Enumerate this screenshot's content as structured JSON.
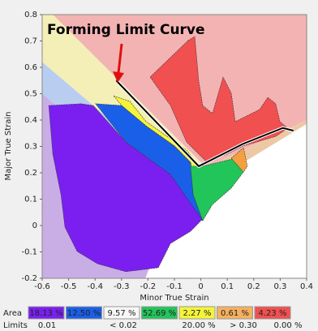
{
  "chart_data": {
    "type": "fld",
    "annotation": "Forming Limit Curve",
    "x_label": "Minor True Strain",
    "y_label": "Major True Strain",
    "xlim": [
      -0.6,
      0.4
    ],
    "ylim": [
      -0.2,
      0.8
    ],
    "xticks": [
      -0.6,
      -0.5,
      -0.4,
      -0.3,
      -0.2,
      -0.1,
      0,
      0.1,
      0.2,
      0.3,
      0.4
    ],
    "yticks": [
      -0.2,
      -0.1,
      0,
      0.1,
      0.2,
      0.3,
      0.4,
      0.5,
      0.6,
      0.7,
      0.8
    ],
    "zones": [
      {
        "color": "#f4b3b3",
        "x": [
          -0.56,
          0.4,
          0.4,
          0.02
        ],
        "y": [
          0.8,
          0.8,
          0.4,
          0.22
        ]
      },
      {
        "color": "#f3efb6",
        "x": [
          -0.6,
          -0.56,
          0.02,
          -0.05,
          -0.6
        ],
        "y": [
          0.8,
          0.8,
          0.22,
          0.15,
          0.62
        ]
      },
      {
        "color": "#b9cdf0",
        "x": [
          -0.6,
          -0.05,
          -0.1,
          -0.6
        ],
        "y": [
          0.62,
          0.15,
          0.08,
          0.5
        ]
      },
      {
        "color": "#c9aee6",
        "x": [
          -0.6,
          -0.1,
          -0.21,
          -0.6
        ],
        "y": [
          0.5,
          0.08,
          -0.2,
          -0.2
        ]
      },
      {
        "color": "#ecc9a4",
        "x": [
          0.02,
          0.4,
          0.4,
          -0.1,
          -0.05
        ],
        "y": [
          0.22,
          0.4,
          0.385,
          0.08,
          0.15
        ]
      }
    ],
    "regions": [
      {
        "color": "#7a1ff0",
        "x": [
          -0.575,
          -0.453,
          -0.407,
          -0.284,
          -0.115,
          0.007,
          -0.039,
          -0.115,
          -0.161,
          -0.284,
          -0.391,
          -0.468,
          -0.514,
          -0.529,
          -0.56
        ],
        "y": [
          0.455,
          0.462,
          0.455,
          0.317,
          0.194,
          0.025,
          -0.022,
          -0.068,
          -0.16,
          -0.175,
          -0.145,
          -0.098,
          -0.006,
          0.117,
          0.271
        ]
      },
      {
        "color": "#1a5fe8",
        "x": [
          -0.398,
          -0.299,
          -0.207,
          -0.1,
          -0.039,
          -0.029,
          0.007,
          -0.115,
          -0.284
        ],
        "y": [
          0.462,
          0.455,
          0.378,
          0.302,
          0.24,
          0.117,
          0.018,
          0.194,
          0.317
        ]
      },
      {
        "color": "#f4f43a",
        "x": [
          -0.33,
          -0.269,
          -0.207,
          -0.054,
          -0.008,
          -0.029,
          -0.039,
          -0.1,
          -0.207,
          -0.299
        ],
        "y": [
          0.492,
          0.471,
          0.394,
          0.286,
          0.225,
          0.203,
          0.24,
          0.302,
          0.378,
          0.455
        ]
      },
      {
        "color": "#22c55a",
        "x": [
          -0.039,
          0.007,
          0.13,
          0.161,
          0.115,
          0.044,
          0.007,
          -0.029
        ],
        "y": [
          0.225,
          0.225,
          0.255,
          0.203,
          0.142,
          0.08,
          0.018,
          0.117
        ]
      },
      {
        "color": "#f5a040",
        "x": [
          0.115,
          0.161,
          0.176,
          0.161
        ],
        "y": [
          0.255,
          0.295,
          0.225,
          0.203
        ]
      },
      {
        "color": "#f05050",
        "x": [
          -0.048,
          -0.023,
          -0.008,
          0.007,
          0.044,
          0.084,
          0.115,
          0.13,
          0.222,
          0.253,
          0.283,
          0.299,
          0.329,
          0.283,
          0.161,
          0.099,
          0.023,
          -0.054,
          -0.115,
          -0.192
        ],
        "y": [
          0.702,
          0.717,
          0.548,
          0.455,
          0.425,
          0.563,
          0.502,
          0.394,
          0.44,
          0.486,
          0.462,
          0.394,
          0.369,
          0.338,
          0.302,
          0.271,
          0.24,
          0.317,
          0.455,
          0.563
        ]
      }
    ],
    "curve": {
      "color": "#000000",
      "x": [
        -0.32,
        -0.008,
        0.16,
        0.31,
        0.35
      ],
      "y": [
        0.55,
        0.225,
        0.31,
        0.37,
        0.36
      ]
    }
  },
  "legend_table": {
    "area_label": "Area",
    "limits_label": "Limits",
    "area": [
      {
        "color": "#7a1ff0",
        "text": "18.13 %"
      },
      {
        "color": "#1a5fe8",
        "text": "12.50 %"
      },
      {
        "color": "#f7f7f7",
        "text": "9.57 %"
      },
      {
        "color": "#22c55a",
        "text": "52.69 %"
      },
      {
        "color": "#f4f43a",
        "text": "2.27 %"
      },
      {
        "color": "#f5b060",
        "text": "0.61 %"
      },
      {
        "color": "#f05050",
        "text": "4.23 %"
      }
    ],
    "limits": [
      "0.01",
      "< 0.02",
      "20.00 %",
      "> 0.30",
      "0.00 %"
    ]
  }
}
